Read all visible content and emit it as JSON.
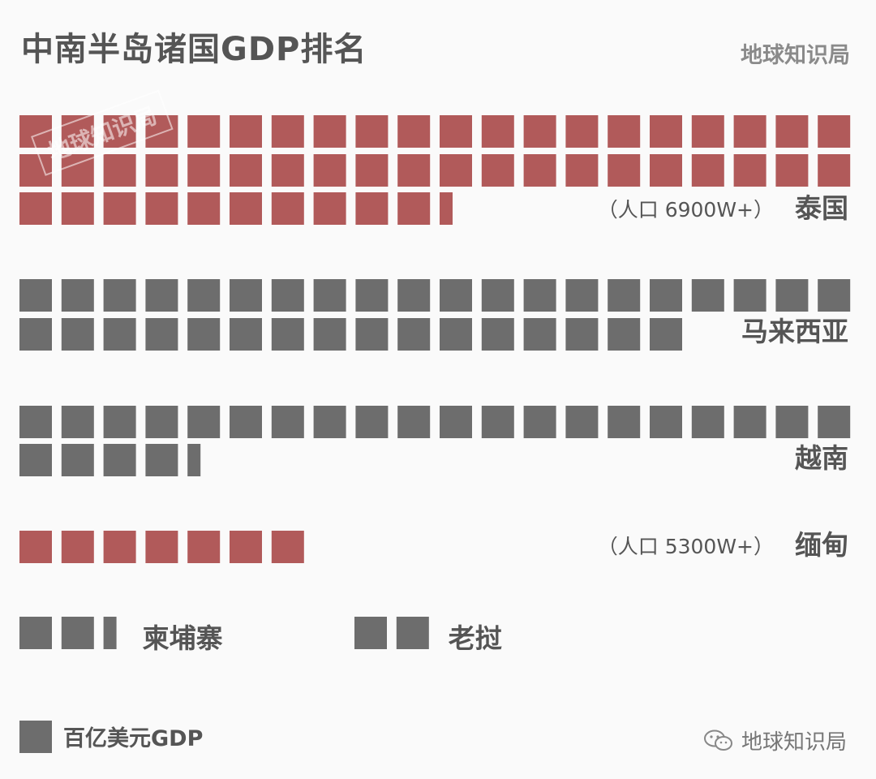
{
  "title": "中南半岛诸国GDP排名",
  "brand": "地球知识局",
  "watermark": "地球知识局",
  "footer": {
    "icon": "wechat-icon",
    "text": "地球知识局"
  },
  "legend": {
    "unit_label": "百亿美元GDP",
    "swatch_color": "#6d6d6d"
  },
  "colors": {
    "highlight": "#b15a5a",
    "default": "#6d6d6d",
    "background": "#fafafa"
  },
  "chart_data": {
    "type": "waffle",
    "title": "中南半岛诸国GDP排名",
    "unit": "百亿美元GDP",
    "series": [
      {
        "name": "泰国",
        "value": 50.4,
        "note": "（人口 6900W+）",
        "highlight": true
      },
      {
        "name": "马来西亚",
        "value": 36,
        "note": "",
        "highlight": false
      },
      {
        "name": "越南",
        "value": 24.4,
        "note": "",
        "highlight": false
      },
      {
        "name": "缅甸",
        "value": 7,
        "note": "（人口 5300W+）",
        "highlight": true
      },
      {
        "name": "柬埔寨",
        "value": 2.4,
        "note": "",
        "highlight": false
      },
      {
        "name": "老挝",
        "value": 2,
        "note": "",
        "highlight": false
      }
    ]
  }
}
